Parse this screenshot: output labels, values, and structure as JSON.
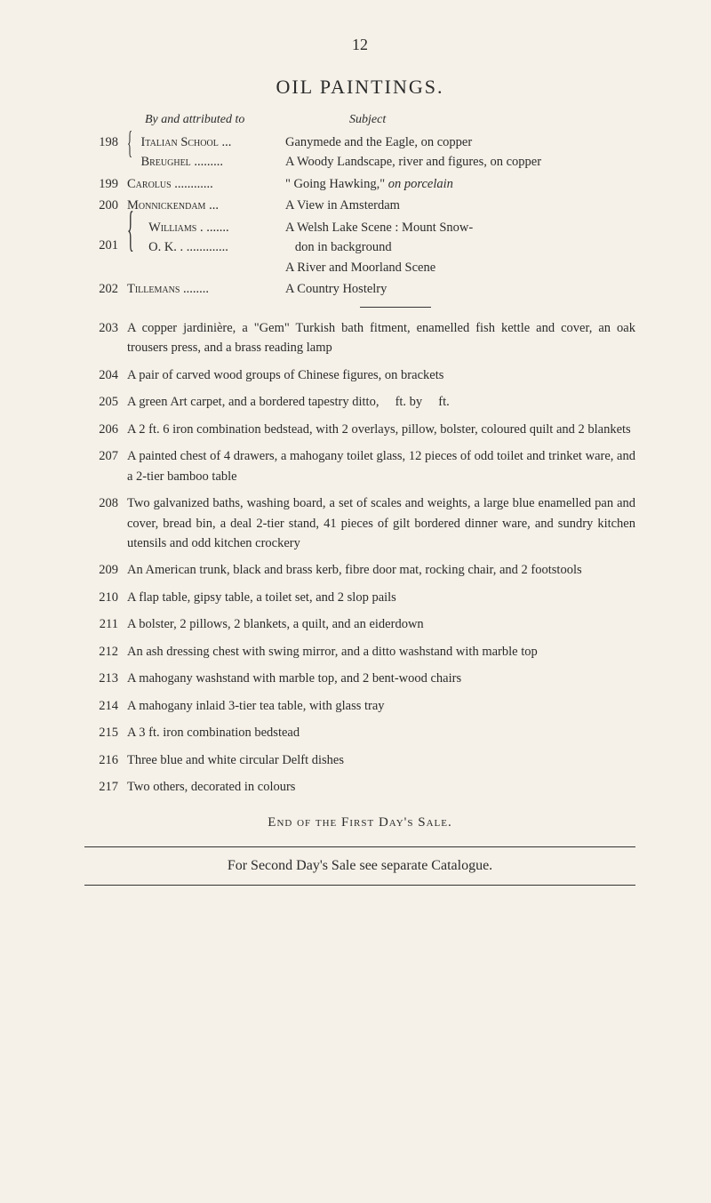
{
  "page_number": "12",
  "main_title": "OIL PAINTINGS.",
  "header": {
    "left": "By and attributed to",
    "right": "Subject"
  },
  "catalogue": [
    {
      "lot": "198",
      "multi": true,
      "artists": [
        "Italian School ...",
        "Breughel ........."
      ],
      "subjects": [
        {
          "pre": "Ganymede and the Eagle, ",
          "it": "on copper"
        },
        {
          "pre": "A Woody Landscape, river and figures, ",
          "it": "on copper"
        }
      ]
    },
    {
      "lot": "199",
      "artist": "Carolus ............",
      "subject_pre": "\" Going Hawking,\" ",
      "subject_it": "on porcelain"
    },
    {
      "lot": "200",
      "artist": "Monnickendam ...",
      "subject_pre": "A View in Amsterdam",
      "subject_it": ""
    },
    {
      "lot": "201",
      "multi": true,
      "three": true,
      "artists": [
        "Williams . .......",
        "",
        "O. K. . ............."
      ],
      "subjects": [
        {
          "pre": "A Welsh Lake Scene : Mount Snow-",
          "it": ""
        },
        {
          "pre": "   don in background",
          "it": ""
        },
        {
          "pre": "A River and Moorland Scene",
          "it": ""
        }
      ]
    },
    {
      "lot": "202",
      "artist": "Tillemans ........",
      "subject_pre": "A Country Hostelry",
      "subject_it": ""
    }
  ],
  "lots": [
    {
      "num": "203",
      "text": "A copper jardinière, a \"Gem\" Turkish bath fitment, enamelled fish kettle and cover, an oak trousers press, and a brass reading lamp"
    },
    {
      "num": "204",
      "text": "A pair of carved wood groups of Chinese figures, on brackets"
    },
    {
      "num": "205",
      "text": "A green Art carpet, and a bordered tapestry ditto,     ft. by     ft."
    },
    {
      "num": "206",
      "text": "A 2 ft. 6 iron combination bedstead, with 2 overlays, pillow, bolster, coloured quilt and 2 blankets"
    },
    {
      "num": "207",
      "text": "A painted chest of 4 drawers, a mahogany toilet glass, 12 pieces of odd toilet and trinket ware, and a 2-tier bamboo table"
    },
    {
      "num": "208",
      "text": "Two galvanized baths, washing board, a set of scales and weights, a large blue enamelled pan and cover, bread bin, a deal 2-tier stand, 41 pieces of gilt bordered dinner ware, and sundry kitchen utensils and odd kitchen crockery"
    },
    {
      "num": "209",
      "text": "An American trunk, black and brass kerb, fibre door mat, rocking chair, and 2 footstools"
    },
    {
      "num": "210",
      "text": "A flap table, gipsy table, a toilet set, and 2 slop pails"
    },
    {
      "num": "211",
      "text": "A bolster, 2 pillows, 2 blankets, a quilt, and an eiderdown"
    },
    {
      "num": "212",
      "text": "An ash dressing chest with swing mirror, and a ditto washstand with marble top"
    },
    {
      "num": "213",
      "text": "A mahogany washstand with marble top, and 2 bent-wood chairs"
    },
    {
      "num": "214",
      "text": "A mahogany inlaid 3-tier tea table, with glass tray"
    },
    {
      "num": "215",
      "text": "A 3 ft. iron combination bedstead"
    },
    {
      "num": "216",
      "text": "Three blue and white circular Delft dishes"
    },
    {
      "num": "217",
      "text": "Two others, decorated in colours"
    }
  ],
  "end_title": "End of the First Day's Sale.",
  "footer": "For Second Day's Sale see separate Catalogue."
}
